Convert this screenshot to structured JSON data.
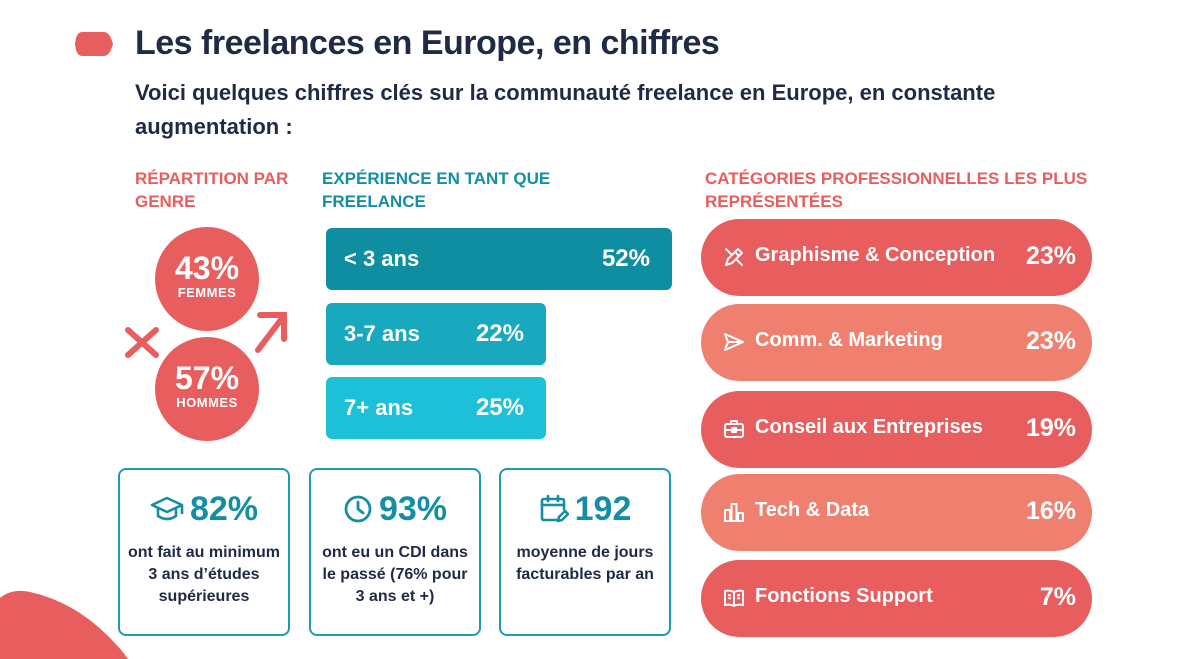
{
  "header": {
    "title": "Les freelances en Europe, en chiffres",
    "subtitle": "Voici quelques chiffres clés sur la communauté freelance en Europe, en constante augmentation :"
  },
  "colors": {
    "coral": "#e85d5d",
    "coral_light": "#ef8070",
    "teal_dark": "#0e8ea0",
    "teal_mid": "#18a9bf",
    "teal_light": "#1ec0d8",
    "navy": "#1f2a44"
  },
  "gender": {
    "heading": "RÉPARTITION PAR GENRE",
    "femmes_pct": "43%",
    "femmes_label": "FEMMES",
    "hommes_pct": "57%",
    "hommes_label": "HOMMES"
  },
  "experience": {
    "heading": "EXPÉRIENCE EN TANT QUE FREELANCE",
    "bars": [
      {
        "label": "< 3 ans",
        "value_text": "52%"
      },
      {
        "label": "3-7 ans",
        "value_text": "22%"
      },
      {
        "label": "7+ ans",
        "value_text": "25%"
      }
    ]
  },
  "stats": [
    {
      "icon": "graduation-cap-icon",
      "value": "82%",
      "text": "ont fait au minimum 3 ans d’études supérieures"
    },
    {
      "icon": "clock-icon",
      "value": "93%",
      "text": "ont eu un CDI dans le passé (76% pour 3 ans et +)"
    },
    {
      "icon": "calendar-edit-icon",
      "value": "192",
      "text": "moyenne de jours facturables par an"
    }
  ],
  "categories": {
    "heading": "CATÉGORIES PROFESSIONNELLES LES PLUS REPRÉSENTÉES",
    "items": [
      {
        "icon": "pen-tool-icon",
        "label": "Graphisme & Conception",
        "value_text": "23%"
      },
      {
        "icon": "send-icon",
        "label": "Comm. & Marketing",
        "value_text": "23%"
      },
      {
        "icon": "briefcase-icon",
        "label": "Conseil aux Entreprises",
        "value_text": "19%"
      },
      {
        "icon": "bar-chart-icon",
        "label": "Tech & Data",
        "value_text": "16%"
      },
      {
        "icon": "book-icon",
        "label": "Fonctions Support",
        "value_text": "7%"
      }
    ]
  },
  "chart_data": [
    {
      "type": "bar",
      "title": "EXPÉRIENCE EN TANT QUE FREELANCE",
      "categories": [
        "< 3 ans",
        "3-7 ans",
        "7+ ans"
      ],
      "values": [
        52,
        22,
        25
      ]
    },
    {
      "type": "bar",
      "title": "CATÉGORIES PROFESSIONNELLES LES PLUS REPRÉSENTÉES",
      "categories": [
        "Graphisme & Conception",
        "Comm. & Marketing",
        "Conseil aux Entreprises",
        "Tech & Data",
        "Fonctions Support"
      ],
      "values": [
        23,
        23,
        19,
        16,
        7
      ]
    },
    {
      "type": "pie",
      "title": "RÉPARTITION PAR GENRE",
      "categories": [
        "FEMMES",
        "HOMMES"
      ],
      "values": [
        43,
        57
      ]
    }
  ]
}
